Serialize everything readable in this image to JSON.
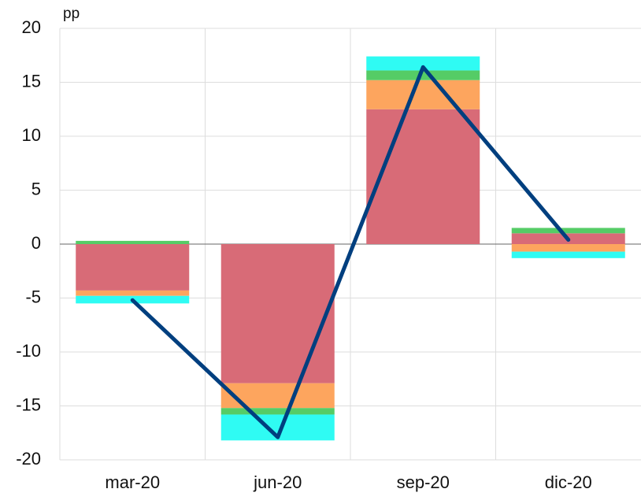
{
  "chart_data": {
    "type": "bar",
    "stacked": true,
    "y_label": "pp",
    "categories": [
      "mar-20",
      "jun-20",
      "sep-20",
      "dic-20"
    ],
    "series": [
      {
        "color": "#d86b77",
        "values": [
          -4.3,
          -12.9,
          12.5,
          1.0
        ]
      },
      {
        "color": "#fda55e",
        "values": [
          -0.5,
          -2.3,
          2.7,
          -0.7
        ]
      },
      {
        "color": "#55cc66",
        "values": [
          0.3,
          -0.6,
          0.9,
          0.5
        ]
      },
      {
        "color": "#2ffbf3",
        "values": [
          -0.7,
          -2.4,
          1.3,
          -0.6
        ]
      },
      {
        "type": "line",
        "color": "#003f7f",
        "values": [
          -5.2,
          -17.9,
          16.4,
          0.4
        ]
      }
    ],
    "ylim": [
      -20,
      20
    ],
    "yticks": [
      -20,
      -15,
      -10,
      -5,
      0,
      5,
      10,
      15,
      20
    ],
    "grid": true
  }
}
